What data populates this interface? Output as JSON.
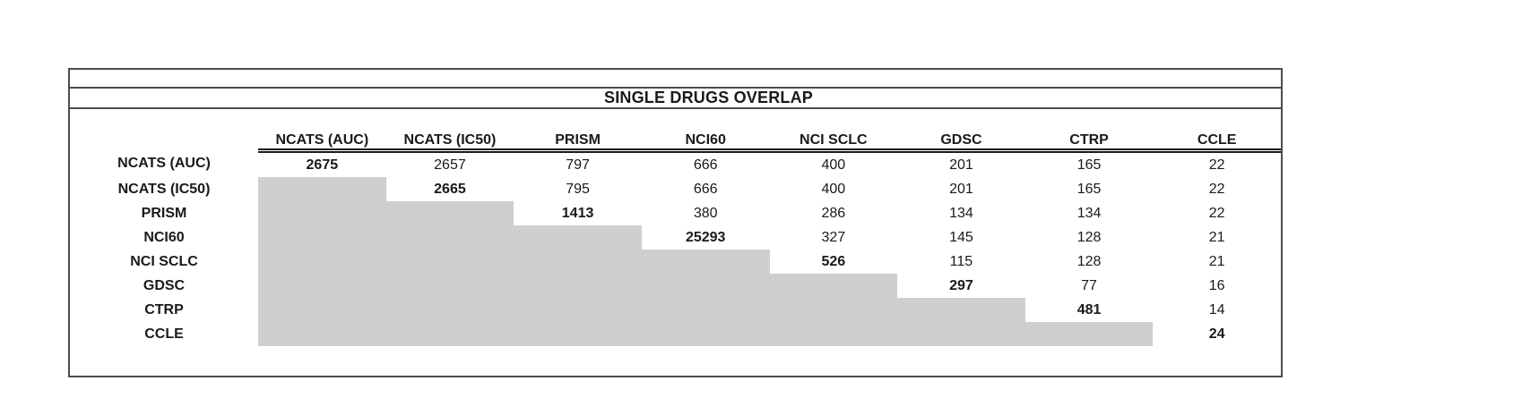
{
  "title": "SINGLE DRUGS OVERLAP",
  "chart_data": {
    "type": "table",
    "title": "SINGLE DRUGS OVERLAP",
    "columns": [
      "NCATS (AUC)",
      "NCATS (IC50)",
      "PRISM",
      "NCI60",
      "NCI SCLC",
      "GDSC",
      "CTRP",
      "CCLE"
    ],
    "rows": [
      {
        "label": "NCATS (AUC)",
        "values": [
          2675,
          2657,
          797,
          666,
          400,
          201,
          165,
          22
        ]
      },
      {
        "label": "NCATS (IC50)",
        "values": [
          null,
          2665,
          795,
          666,
          400,
          201,
          165,
          22
        ]
      },
      {
        "label": "PRISM",
        "values": [
          null,
          null,
          1413,
          380,
          286,
          134,
          134,
          22
        ]
      },
      {
        "label": "NCI60",
        "values": [
          null,
          null,
          null,
          25293,
          327,
          145,
          128,
          21
        ]
      },
      {
        "label": "NCI SCLC",
        "values": [
          null,
          null,
          null,
          null,
          526,
          115,
          128,
          21
        ]
      },
      {
        "label": "GDSC",
        "values": [
          null,
          null,
          null,
          null,
          null,
          297,
          77,
          16
        ]
      },
      {
        "label": "CTRP",
        "values": [
          null,
          null,
          null,
          null,
          null,
          null,
          481,
          14
        ]
      },
      {
        "label": "CCLE",
        "values": [
          null,
          null,
          null,
          null,
          null,
          null,
          null,
          24
        ]
      }
    ],
    "layout_hints": {
      "shaded_region": "strict-lower-triangle",
      "diagonal_bold": true,
      "header_rule": "double-line-under-data-columns"
    },
    "colors": {
      "shaded_cell": "#cfcfcf",
      "outer_border": "#4d4d4d",
      "header_rule": "#1a1a1a",
      "text": "#1a1a1a",
      "background": "#ffffff"
    }
  }
}
